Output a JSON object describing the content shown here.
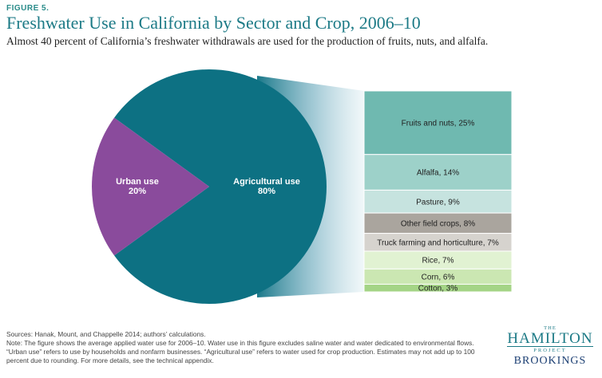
{
  "figure_label": "FIGURE 5.",
  "chart_data": {
    "type": "pie",
    "title": "Freshwater Use in California by Sector and Crop, 2006–10",
    "subtitle": "Almost 40 percent of California’s freshwater withdrawals are used for the production of fruits, nuts, and alfalfa.",
    "slices": [
      {
        "name": "Agricultural use",
        "value": 80,
        "label": "80%",
        "color": "#0d7183"
      },
      {
        "name": "Urban use",
        "value": 20,
        "label": "20%",
        "color": "#8a4b9c"
      }
    ],
    "breakdown": {
      "of": "Agricultural use",
      "type": "stacked-bar",
      "segments": [
        {
          "label": "Fruits and nuts, 25%",
          "value": 25,
          "color": "#6fb9b0"
        },
        {
          "label": "Alfalfa,  14%",
          "value": 14,
          "color": "#9dd1c9"
        },
        {
          "label": "Pasture, 9%",
          "value": 9,
          "color": "#c6e3df"
        },
        {
          "label": "Other field crops, 8%",
          "value": 8,
          "color": "#aaa59e"
        },
        {
          "label": "Truck farming and horticulture, 7%",
          "value": 7,
          "color": "#d6d3ce"
        },
        {
          "label": "Rice, 7%",
          "value": 7,
          "color": "#e1f2d2"
        },
        {
          "label": "Corn, 6%",
          "value": 6,
          "color": "#cbe7b2"
        },
        {
          "label": "Cotton, 3%",
          "value": 3,
          "color": "#a4d486"
        }
      ]
    }
  },
  "sources": "Sources: Hanak, Mount, and Chappelle 2014; authors’ calculations.",
  "note": "Note: The figure shows the average applied water use for 2006–10. Water use in this figure excludes saline water and water dedicated to environmental flows. “Urban use” refers to use by households and nonfarm businesses. “Agricultural use” refers to water used for crop production. Estimates may not add up to 100 percent due to rounding. For more details, see the technical appendix.",
  "logo": {
    "the": "THE",
    "hamilton": "HAMILTON",
    "project": "PROJECT",
    "brookings": "BROOKINGS"
  }
}
